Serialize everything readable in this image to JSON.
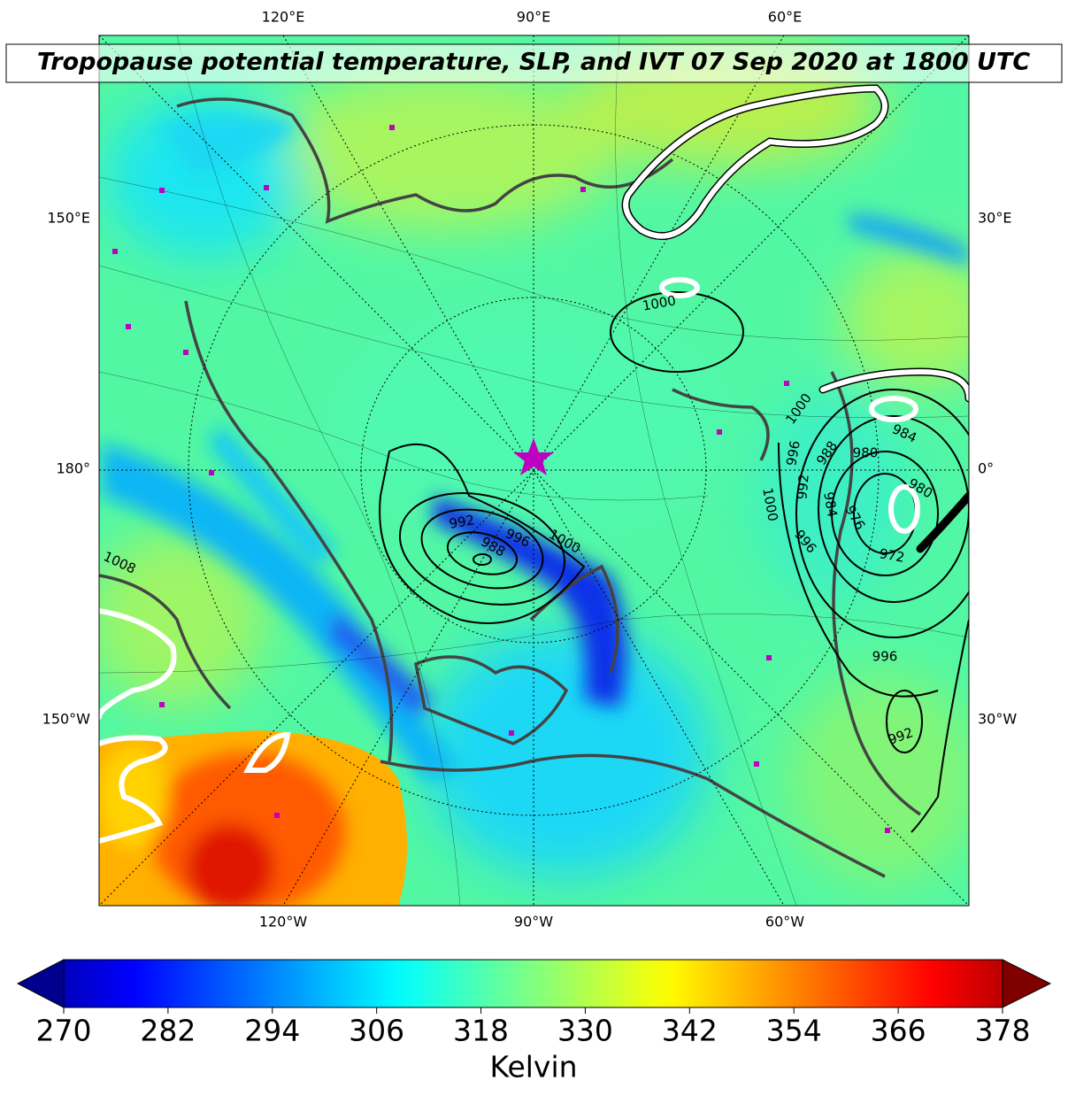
{
  "map": {
    "title": "Tropopause potential temperature, SLP, and IVT 07 Sep 2020 at 1800 UTC",
    "lon_labels": {
      "top": [
        "120°E",
        "90°E",
        "60°E"
      ],
      "bottom": [
        "120°W",
        "90°W",
        "60°W"
      ],
      "left": [
        "150°E",
        "180°",
        "150°W"
      ],
      "right": [
        "30°E",
        "0°",
        "30°W"
      ]
    },
    "slp_contour_labels": [
      1000,
      1000,
      984,
      988,
      980,
      996,
      980,
      992,
      1000,
      984,
      976,
      972,
      996,
      992,
      996,
      1000,
      988,
      1008,
      996,
      992
    ],
    "colorbar": {
      "ticks": [
        270,
        282,
        294,
        306,
        318,
        330,
        342,
        354,
        366,
        378
      ],
      "label": "Kelvin"
    }
  }
}
